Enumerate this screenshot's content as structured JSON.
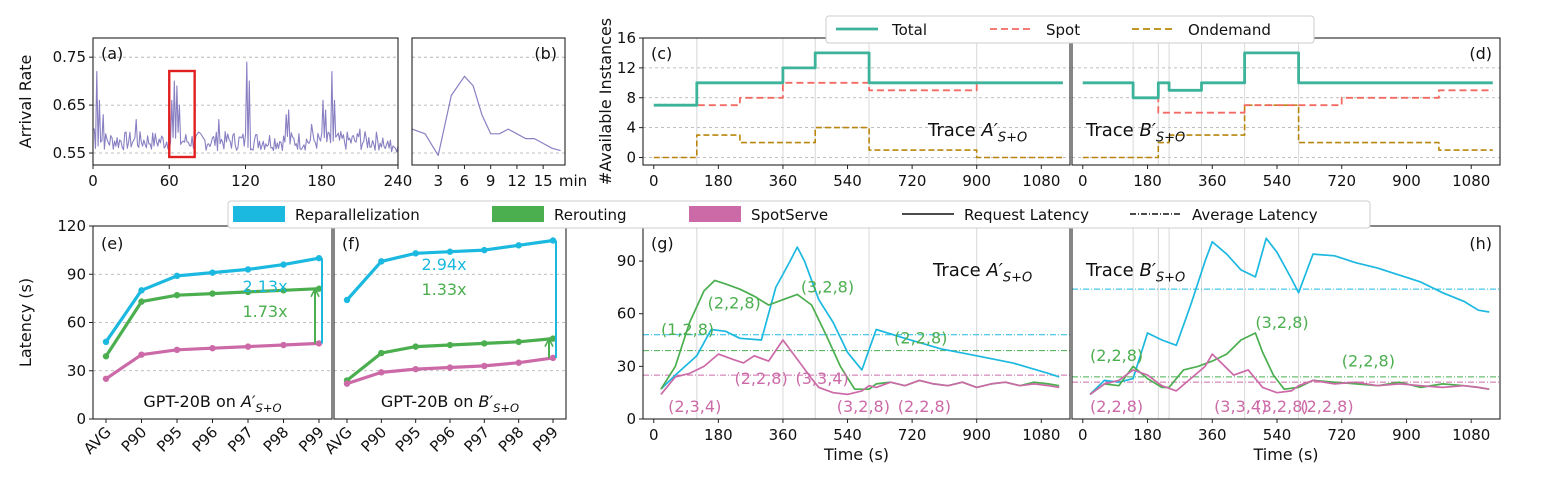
{
  "colors": {
    "total": "#3cb39a",
    "spot": "#f26a63",
    "ondemand": "#b8860b",
    "repar": "#1bb8e0",
    "rerout": "#4bae4f",
    "spotserve": "#cc6aa8",
    "box": "#e02020",
    "arrival": "#8880c2"
  },
  "legend_top": {
    "items": [
      {
        "label": "Total",
        "style": "solid",
        "color_key": "total"
      },
      {
        "label": "Spot",
        "style": "dashed",
        "color_key": "spot"
      },
      {
        "label": "Ondemand",
        "style": "dashed",
        "color_key": "ondemand"
      }
    ]
  },
  "legend_mid": {
    "items": [
      {
        "label": "Reparallelization",
        "style": "patch",
        "color_key": "repar"
      },
      {
        "label": "Rerouting",
        "style": "patch",
        "color_key": "rerout"
      },
      {
        "label": "SpotServe",
        "style": "patch",
        "color_key": "spotserve"
      },
      {
        "label": "Request Latency",
        "style": "solid",
        "color_key": ""
      },
      {
        "label": "Average Latency",
        "style": "dashdot",
        "color_key": ""
      }
    ]
  },
  "chart_data": [
    {
      "id": "a",
      "type": "line",
      "panel_label": "(a)",
      "ylabel": "Arrival Rate",
      "xlabel": "",
      "xlim": [
        0,
        240
      ],
      "ylim": [
        0.525,
        0.79
      ],
      "xticks": [
        0,
        60,
        120,
        180,
        240
      ],
      "yticks": [
        0.55,
        0.65,
        0.75
      ],
      "ytick_labels": [
        "0.55",
        "0.65",
        "0.75"
      ],
      "highlight_x": [
        60,
        80
      ],
      "seed": 7,
      "spikes": [
        [
          3,
          0.72
        ],
        [
          5,
          0.66
        ],
        [
          8,
          0.63
        ],
        [
          34,
          0.62
        ],
        [
          62,
          0.66
        ],
        [
          64,
          0.7
        ],
        [
          66,
          0.69
        ],
        [
          68,
          0.65
        ],
        [
          99,
          0.62
        ],
        [
          121,
          0.74
        ],
        [
          123,
          0.7
        ],
        [
          152,
          0.63
        ],
        [
          154,
          0.64
        ],
        [
          172,
          0.61
        ],
        [
          181,
          0.66
        ],
        [
          183,
          0.64
        ],
        [
          188,
          0.72
        ],
        [
          190,
          0.66
        ],
        [
          210,
          0.6
        ]
      ]
    },
    {
      "id": "b",
      "type": "line",
      "panel_label": "(b)",
      "xlabel_suffix": "min",
      "xlim": [
        0,
        17.5
      ],
      "ylim": [
        0.525,
        0.79
      ],
      "xticks": [
        3,
        6,
        9,
        12,
        15
      ],
      "x": [
        0,
        1.5,
        3,
        4.5,
        6,
        7,
        8,
        9,
        10,
        11,
        12,
        13,
        14,
        15,
        16,
        17
      ],
      "y": [
        0.6,
        0.59,
        0.545,
        0.67,
        0.71,
        0.69,
        0.63,
        0.59,
        0.59,
        0.6,
        0.59,
        0.58,
        0.58,
        0.57,
        0.56,
        0.555
      ]
    },
    {
      "id": "c",
      "type": "step",
      "panel_label": "(c)",
      "trace_label": "Trace A'_{S+O}",
      "ylabel": "#Available Instances",
      "xlabel": "",
      "xlim": [
        -30,
        1160
      ],
      "ylim": [
        -1,
        16
      ],
      "xticks": [
        0,
        180,
        360,
        540,
        720,
        900,
        1080
      ],
      "yticks": [
        0,
        4,
        8,
        12,
        16
      ],
      "vlines": [
        120,
        360,
        450,
        600,
        900
      ],
      "series": [
        {
          "name": "Total",
          "steps": [
            [
              0,
              7
            ],
            [
              120,
              10
            ],
            [
              360,
              12
            ],
            [
              450,
              14
            ],
            [
              600,
              10
            ],
            [
              1140,
              10
            ]
          ]
        },
        {
          "name": "Spot",
          "steps": [
            [
              0,
              7
            ],
            [
              240,
              8
            ],
            [
              360,
              10
            ],
            [
              600,
              9
            ],
            [
              900,
              10
            ],
            [
              1140,
              10
            ]
          ]
        },
        {
          "name": "Ondemand",
          "steps": [
            [
              0,
              0
            ],
            [
              120,
              3
            ],
            [
              240,
              2
            ],
            [
              450,
              4
            ],
            [
              600,
              1
            ],
            [
              900,
              0
            ],
            [
              1140,
              0
            ]
          ]
        }
      ]
    },
    {
      "id": "d",
      "type": "step",
      "panel_label": "(d)",
      "trace_label": "Trace B'_{S+O}",
      "xlim": [
        -30,
        1160
      ],
      "ylim": [
        -1,
        16
      ],
      "xticks": [
        0,
        180,
        360,
        540,
        720,
        900,
        1080
      ],
      "yticks": [
        0,
        4,
        8,
        12,
        16
      ],
      "vlines": [
        140,
        210,
        240,
        330,
        450,
        600
      ],
      "series": [
        {
          "name": "Total",
          "steps": [
            [
              0,
              10
            ],
            [
              140,
              8
            ],
            [
              210,
              10
            ],
            [
              240,
              9
            ],
            [
              330,
              10
            ],
            [
              450,
              14
            ],
            [
              600,
              10
            ],
            [
              1140,
              10
            ]
          ]
        },
        {
          "name": "Spot",
          "steps": [
            [
              0,
              10
            ],
            [
              140,
              8
            ],
            [
              210,
              6
            ],
            [
              240,
              6
            ],
            [
              450,
              7
            ],
            [
              600,
              7
            ],
            [
              720,
              8
            ],
            [
              990,
              9
            ],
            [
              1140,
              9
            ]
          ]
        },
        {
          "name": "Ondemand",
          "steps": [
            [
              0,
              0
            ],
            [
              210,
              2
            ],
            [
              240,
              3
            ],
            [
              330,
              3
            ],
            [
              450,
              7
            ],
            [
              600,
              2
            ],
            [
              990,
              1
            ],
            [
              1140,
              1
            ]
          ]
        }
      ]
    },
    {
      "id": "e",
      "type": "line",
      "panel_label": "(e)",
      "ylabel": "Latency (s)",
      "categories": [
        "AVG",
        "P90",
        "P95",
        "P96",
        "P97",
        "P98",
        "P99"
      ],
      "ylim": [
        0,
        120
      ],
      "yticks": [
        0,
        30,
        60,
        90,
        120
      ],
      "caption": "GPT-20B on A'_{S+O}",
      "series": [
        {
          "name": "Reparallelization",
          "values": [
            48,
            80,
            89,
            91,
            93,
            96,
            100
          ]
        },
        {
          "name": "Rerouting",
          "values": [
            39,
            73,
            77,
            78,
            79,
            80,
            81
          ]
        },
        {
          "name": "SpotServe",
          "values": [
            25,
            40,
            43,
            44,
            45,
            46,
            47
          ]
        }
      ],
      "ratio_top": "2.13x",
      "ratio_bottom": "1.73x"
    },
    {
      "id": "f",
      "type": "line",
      "panel_label": "(f)",
      "categories": [
        "AVG",
        "P90",
        "P95",
        "P96",
        "P97",
        "P98",
        "P99"
      ],
      "ylim": [
        0,
        120
      ],
      "yticks": [
        0,
        30,
        60,
        90,
        120
      ],
      "caption": "GPT-20B on B'_{S+O}",
      "series": [
        {
          "name": "Reparallelization",
          "values": [
            74,
            98,
            103,
            104,
            105,
            108,
            111
          ]
        },
        {
          "name": "Rerouting",
          "values": [
            24,
            41,
            45,
            46,
            47,
            48,
            50
          ]
        },
        {
          "name": "SpotServe",
          "values": [
            22,
            29,
            31,
            32,
            33,
            35,
            38
          ]
        }
      ],
      "ratio_top": "2.94x",
      "ratio_bottom": "1.33x"
    },
    {
      "id": "g",
      "type": "line",
      "panel_label": "(g)",
      "trace_label": "Trace A'_{S+O}",
      "xlabel": "Time (s)",
      "xlim": [
        -30,
        1160
      ],
      "ylim": [
        0,
        110
      ],
      "xticks": [
        0,
        180,
        360,
        540,
        720,
        900,
        1080
      ],
      "yticks": [
        0,
        30,
        60,
        90
      ],
      "vlines": [
        120,
        360,
        450,
        600,
        900
      ],
      "series": [
        {
          "name": "Reparallelization",
          "x": [
            20,
            60,
            120,
            160,
            200,
            240,
            300,
            340,
            380,
            400,
            420,
            460,
            500,
            540,
            580,
            620,
            700,
            800,
            900,
            1000,
            1100,
            1130
          ],
          "y": [
            17,
            25,
            36,
            51,
            50,
            46,
            45,
            75,
            90,
            98,
            90,
            68,
            55,
            38,
            28,
            51,
            46,
            40,
            36,
            32,
            26,
            24
          ],
          "avg": 48
        },
        {
          "name": "Rerouting",
          "x": [
            20,
            60,
            100,
            140,
            170,
            200,
            240,
            280,
            320,
            360,
            400,
            440,
            480,
            520,
            560,
            600,
            620,
            660,
            700,
            740,
            780,
            820,
            860,
            900,
            940,
            980,
            1020,
            1060,
            1100,
            1130
          ],
          "y": [
            17,
            30,
            55,
            73,
            79,
            77,
            74,
            70,
            65,
            68,
            71,
            65,
            48,
            30,
            17,
            17,
            20,
            21,
            19,
            22,
            20,
            19,
            21,
            18,
            20,
            21,
            19,
            21,
            20,
            19
          ],
          "avg": 39
        },
        {
          "name": "SpotServe",
          "x": [
            20,
            60,
            100,
            140,
            180,
            220,
            250,
            280,
            320,
            360,
            400,
            440,
            460,
            500,
            540,
            580,
            600,
            620,
            660,
            700,
            740,
            780,
            820,
            860,
            900,
            940,
            980,
            1020,
            1060,
            1100,
            1130
          ],
          "y": [
            14,
            24,
            26,
            30,
            37,
            34,
            32,
            36,
            33,
            45,
            34,
            23,
            18,
            15,
            14,
            16,
            19,
            18,
            21,
            19,
            22,
            20,
            19,
            21,
            18,
            20,
            21,
            19,
            20,
            19,
            18
          ],
          "avg": 25
        }
      ],
      "annotations": [
        {
          "text": "(1,2,8)",
          "x": 20,
          "y": 48,
          "series": "Rerouting"
        },
        {
          "text": "(2,2,8)",
          "x": 150,
          "y": 63,
          "series": "Rerouting"
        },
        {
          "text": "(3,2,8)",
          "x": 410,
          "y": 72,
          "series": "Rerouting"
        },
        {
          "text": "(2,2,8)",
          "x": 670,
          "y": 43,
          "series": "Rerouting"
        },
        {
          "text": "(2,2,8)",
          "x": 225,
          "y": 20,
          "series": "SpotServe"
        },
        {
          "text": "(3,3,4)",
          "x": 395,
          "y": 20,
          "series": "SpotServe"
        },
        {
          "text": "(2,3,4)",
          "x": 40,
          "y": 4,
          "series": "SpotServe"
        },
        {
          "text": "(3,2,8)",
          "x": 510,
          "y": 4,
          "series": "SpotServe"
        },
        {
          "text": "(2,2,8)",
          "x": 680,
          "y": 4,
          "series": "SpotServe"
        }
      ]
    },
    {
      "id": "h",
      "type": "line",
      "panel_label": "(h)",
      "trace_label": "Trace B'_{S+O}",
      "xlabel": "Time (s)",
      "xlim": [
        -30,
        1160
      ],
      "ylim": [
        0,
        110
      ],
      "xticks": [
        0,
        180,
        360,
        540,
        720,
        900,
        1080
      ],
      "yticks": [
        0,
        30,
        60,
        90
      ],
      "vlines": [
        140,
        210,
        240,
        330,
        450,
        600
      ],
      "series": [
        {
          "name": "Reparallelization",
          "x": [
            20,
            60,
            100,
            140,
            180,
            220,
            260,
            300,
            340,
            360,
            400,
            440,
            480,
            510,
            540,
            580,
            600,
            640,
            700,
            760,
            820,
            880,
            940,
            1000,
            1060,
            1100,
            1130
          ],
          "y": [
            14,
            22,
            21,
            23,
            49,
            45,
            42,
            65,
            90,
            101,
            94,
            85,
            81,
            103,
            95,
            80,
            72,
            94,
            93,
            89,
            86,
            82,
            78,
            72,
            67,
            62,
            61
          ],
          "avg": 74
        },
        {
          "name": "Rerouting",
          "x": [
            20,
            60,
            100,
            140,
            180,
            220,
            240,
            280,
            320,
            360,
            400,
            440,
            460,
            480,
            500,
            530,
            560,
            600,
            640,
            700,
            760,
            820,
            880,
            940,
            1000,
            1060,
            1100,
            1130
          ],
          "y": [
            14,
            20,
            19,
            30,
            23,
            18,
            18,
            28,
            30,
            33,
            37,
            45,
            47,
            49,
            38,
            25,
            17,
            18,
            22,
            21,
            20,
            19,
            21,
            18,
            20,
            19,
            18,
            17
          ],
          "avg": 24
        },
        {
          "name": "SpotServe",
          "x": [
            20,
            60,
            100,
            140,
            180,
            220,
            260,
            300,
            340,
            360,
            380,
            420,
            460,
            500,
            540,
            580,
            600,
            640,
            700,
            760,
            820,
            880,
            940,
            1000,
            1060,
            1100,
            1130
          ],
          "y": [
            14,
            20,
            22,
            28,
            25,
            19,
            16,
            23,
            30,
            37,
            33,
            25,
            28,
            18,
            15,
            16,
            19,
            22,
            20,
            21,
            19,
            20,
            19,
            18,
            19,
            18,
            17
          ],
          "avg": 21
        }
      ],
      "annotations": [
        {
          "text": "(2,2,8)",
          "x": 20,
          "y": 33,
          "series": "Rerouting"
        },
        {
          "text": "(3,2,8)",
          "x": 480,
          "y": 52,
          "series": "Rerouting"
        },
        {
          "text": "(2,2,8)",
          "x": 720,
          "y": 30,
          "series": "Rerouting"
        },
        {
          "text": "(2,2,8)",
          "x": 20,
          "y": 4,
          "series": "SpotServe"
        },
        {
          "text": "(3,3,4)",
          "x": 365,
          "y": 4,
          "series": "SpotServe"
        },
        {
          "text": "(3,2,8)",
          "x": 480,
          "y": 4,
          "series": "SpotServe"
        },
        {
          "text": "(2,2,8)",
          "x": 605,
          "y": 4,
          "series": "SpotServe"
        }
      ]
    }
  ]
}
